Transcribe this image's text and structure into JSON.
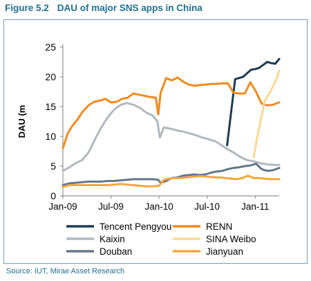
{
  "figure_label": "Figure 5.2",
  "title": "DAU of major SNS apps in China",
  "source": "Source: IUT, Mirae Asset Research",
  "chart_data": {
    "type": "line",
    "title": "DAU of major SNS apps in China",
    "ylabel": "DAU (m",
    "xlabel": "",
    "ylim": [
      0,
      25
    ],
    "yticks": [
      0,
      5,
      10,
      15,
      20,
      25
    ],
    "xlim": [
      0,
      27
    ],
    "xticks": [
      {
        "x": 0,
        "label": "Jan-09"
      },
      {
        "x": 6,
        "label": "Jul-09"
      },
      {
        "x": 12,
        "label": "Jan-10"
      },
      {
        "x": 18,
        "label": "Jul-10"
      },
      {
        "x": 24,
        "label": "Jan-11"
      }
    ],
    "grid": false,
    "legend": "bottom",
    "series": [
      {
        "name": "Tencent Pengyou",
        "color": "#1d3b52",
        "x": [
          20.5,
          21.5,
          22.0,
          22.5,
          23.0,
          23.5,
          24.0,
          24.5,
          25.0,
          25.5,
          26.0,
          26.5,
          27.0
        ],
        "y": [
          8.5,
          19.6,
          19.8,
          20.0,
          20.6,
          21.2,
          21.3,
          21.5,
          22.0,
          22.5,
          22.3,
          22.2,
          23.0
        ]
      },
      {
        "name": "RENN",
        "color": "#f08a1f",
        "x": [
          0,
          0.6,
          1.2,
          1.8,
          2.5,
          3.2,
          3.9,
          4.6,
          5.3,
          6.0,
          6.7,
          7.4,
          8.1,
          8.8,
          9.5,
          10.2,
          10.9,
          11.6,
          11.9,
          12.2,
          12.9,
          13.6,
          14.3,
          15.0,
          15.7,
          16.4,
          17.1,
          17.8,
          18.5,
          19.2,
          19.9,
          20.6,
          21.3,
          22.0,
          22.7,
          23.4,
          24.1,
          24.8,
          25.5,
          26.2,
          27.0
        ],
        "y": [
          8.0,
          10.5,
          11.8,
          12.8,
          14.2,
          15.2,
          15.8,
          16.0,
          16.3,
          15.7,
          15.8,
          16.3,
          16.5,
          17.2,
          17.0,
          16.8,
          16.6,
          16.5,
          13.7,
          17.3,
          19.8,
          19.4,
          19.9,
          19.2,
          18.7,
          18.5,
          18.6,
          18.7,
          18.8,
          18.8,
          18.9,
          18.9,
          17.3,
          17.2,
          17.2,
          19.1,
          17.5,
          15.5,
          15.2,
          15.3,
          15.7
        ]
      },
      {
        "name": "Kaixin",
        "color": "#b2b8be",
        "x": [
          0,
          0.8,
          1.6,
          2.4,
          3.2,
          4.0,
          4.8,
          5.6,
          6.4,
          7.2,
          8.0,
          8.8,
          9.6,
          10.4,
          11.2,
          11.8,
          12.1,
          12.6,
          13.4,
          14.2,
          15.0,
          15.8,
          16.6,
          17.4,
          18.2,
          19.0,
          19.8,
          20.6,
          21.4,
          22.2,
          23.0,
          23.8,
          24.6,
          25.4,
          26.2,
          27.0
        ],
        "y": [
          4.2,
          4.8,
          5.5,
          6.0,
          7.3,
          9.5,
          11.5,
          13.2,
          14.5,
          15.3,
          15.6,
          15.3,
          14.8,
          14.0,
          13.5,
          12.5,
          9.8,
          11.5,
          11.3,
          11.0,
          10.8,
          10.5,
          10.2,
          9.8,
          9.5,
          9.2,
          8.5,
          7.8,
          7.2,
          6.5,
          6.0,
          5.8,
          5.5,
          5.3,
          5.2,
          5.2
        ]
      },
      {
        "name": "SINA Weibo",
        "color": "#fdd792",
        "x": [
          23.8,
          24.5,
          25.2,
          25.9,
          26.6,
          27.0
        ],
        "y": [
          6.5,
          11.5,
          16.0,
          17.5,
          19.5,
          21.0
        ]
      },
      {
        "name": "Douban",
        "color": "#65768a",
        "x": [
          0,
          0.8,
          1.6,
          2.4,
          3.2,
          4.0,
          4.8,
          5.6,
          6.4,
          7.2,
          8.0,
          8.8,
          9.6,
          10.4,
          11.2,
          11.9,
          12.2,
          12.9,
          13.6,
          14.3,
          15.0,
          15.7,
          16.4,
          17.1,
          17.8,
          18.5,
          19.2,
          19.9,
          20.6,
          21.3,
          22.0,
          22.7,
          23.4,
          24.1,
          24.8,
          25.5,
          26.2,
          27.0
        ],
        "y": [
          1.8,
          2.1,
          2.2,
          2.3,
          2.4,
          2.4,
          2.4,
          2.5,
          2.5,
          2.6,
          2.7,
          2.8,
          2.8,
          2.8,
          2.8,
          2.7,
          2.2,
          2.5,
          3.0,
          3.1,
          3.4,
          3.5,
          3.6,
          3.5,
          3.6,
          3.9,
          4.1,
          4.2,
          4.5,
          4.7,
          4.8,
          5.0,
          5.1,
          5.4,
          4.5,
          4.2,
          4.3,
          4.7
        ]
      },
      {
        "name": "Jianyuan",
        "color": "#f5a73a",
        "x": [
          0,
          0.8,
          1.6,
          2.4,
          3.2,
          4.0,
          4.8,
          5.6,
          6.4,
          7.2,
          8.0,
          8.8,
          9.6,
          10.4,
          11.2,
          12.0,
          12.6,
          13.3,
          14.0,
          14.7,
          15.4,
          16.1,
          16.8,
          17.5,
          18.2,
          18.9,
          19.6,
          20.3,
          21.0,
          21.7,
          22.4,
          23.1,
          23.8,
          24.5,
          25.2,
          25.9,
          26.6,
          27.0
        ],
        "y": [
          1.5,
          1.8,
          1.8,
          1.8,
          1.8,
          1.8,
          1.8,
          1.8,
          1.9,
          2.0,
          1.9,
          1.8,
          1.7,
          1.6,
          1.6,
          1.7,
          2.7,
          2.9,
          3.0,
          3.0,
          3.1,
          3.2,
          3.3,
          3.3,
          3.2,
          3.1,
          3.1,
          3.0,
          2.9,
          2.8,
          3.0,
          3.4,
          3.0,
          3.0,
          2.9,
          2.8,
          2.8,
          2.8
        ]
      }
    ]
  }
}
